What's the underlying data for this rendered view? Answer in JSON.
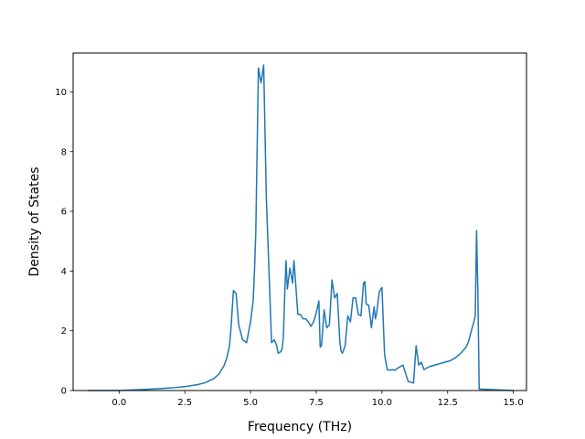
{
  "chart_data": {
    "type": "line",
    "title": "",
    "xlabel": "Frequency (THz)",
    "ylabel": "Density of States",
    "xlim": [
      -1.75,
      15.5
    ],
    "ylim": [
      0,
      11.3
    ],
    "xticks": [
      0.0,
      2.5,
      5.0,
      7.5,
      10.0,
      12.5,
      15.0
    ],
    "xtick_labels": [
      "0.0",
      "2.5",
      "5.0",
      "7.5",
      "10.0",
      "12.5",
      "15.0"
    ],
    "yticks": [
      0,
      2,
      4,
      6,
      8,
      10
    ],
    "ytick_labels": [
      "0",
      "2",
      "4",
      "6",
      "8",
      "10"
    ],
    "grid": false,
    "line_color": "#1f77b4",
    "series": [
      {
        "x": [
          -1.2,
          -0.5,
          0.0,
          0.5,
          1.0,
          1.5,
          2.0,
          2.5,
          3.0,
          3.3,
          3.6,
          3.8,
          4.0,
          4.1,
          4.2,
          4.25,
          4.35,
          4.45,
          4.55,
          4.7,
          4.85,
          5.0,
          5.1,
          5.15,
          5.2,
          5.3,
          5.4,
          5.5,
          5.6,
          5.8,
          5.9,
          6.0,
          6.05,
          6.15,
          6.2,
          6.25,
          6.3,
          6.35,
          6.4,
          6.5,
          6.6,
          6.65,
          6.7,
          6.8,
          6.9,
          7.0,
          7.1,
          7.2,
          7.3,
          7.4,
          7.5,
          7.6,
          7.65,
          7.7,
          7.8,
          7.9,
          8.0,
          8.1,
          8.2,
          8.3,
          8.4,
          8.45,
          8.5,
          8.6,
          8.7,
          8.8,
          8.9,
          9.0,
          9.1,
          9.2,
          9.3,
          9.35,
          9.4,
          9.5,
          9.6,
          9.7,
          9.75,
          9.8,
          9.9,
          10.0,
          10.1,
          10.2,
          10.3,
          10.4,
          10.5,
          10.6,
          10.8,
          11.0,
          11.2,
          11.3,
          11.4,
          11.5,
          11.6,
          11.7,
          11.8,
          12.0,
          12.2,
          12.4,
          12.6,
          12.8,
          13.0,
          13.2,
          13.3,
          13.4,
          13.5,
          13.55,
          13.6,
          13.65,
          13.7,
          15.0
        ],
        "y": [
          0.0,
          0.0,
          0.0,
          0.02,
          0.04,
          0.06,
          0.09,
          0.13,
          0.2,
          0.27,
          0.4,
          0.55,
          0.85,
          1.1,
          1.5,
          2.0,
          3.35,
          3.25,
          2.2,
          1.7,
          1.6,
          2.3,
          3.0,
          4.0,
          5.3,
          10.8,
          10.3,
          10.9,
          6.5,
          1.6,
          1.7,
          1.5,
          1.25,
          1.3,
          1.4,
          1.8,
          3.2,
          4.35,
          3.4,
          4.1,
          3.6,
          4.35,
          3.8,
          2.55,
          2.55,
          2.4,
          2.4,
          2.3,
          2.15,
          2.3,
          2.6,
          3.0,
          1.45,
          1.5,
          2.7,
          2.1,
          2.2,
          3.7,
          3.1,
          3.25,
          1.6,
          1.3,
          1.25,
          1.5,
          2.5,
          2.3,
          3.1,
          3.1,
          2.55,
          2.5,
          3.6,
          3.65,
          2.9,
          2.85,
          2.1,
          2.8,
          2.4,
          2.6,
          3.3,
          3.45,
          1.2,
          0.7,
          0.68,
          0.7,
          0.68,
          0.75,
          0.85,
          0.3,
          0.25,
          1.5,
          0.85,
          0.95,
          0.7,
          0.75,
          0.8,
          0.85,
          0.9,
          0.95,
          1.0,
          1.1,
          1.25,
          1.45,
          1.65,
          2.0,
          2.3,
          2.5,
          5.35,
          3.3,
          0.05,
          0.0
        ]
      }
    ]
  }
}
